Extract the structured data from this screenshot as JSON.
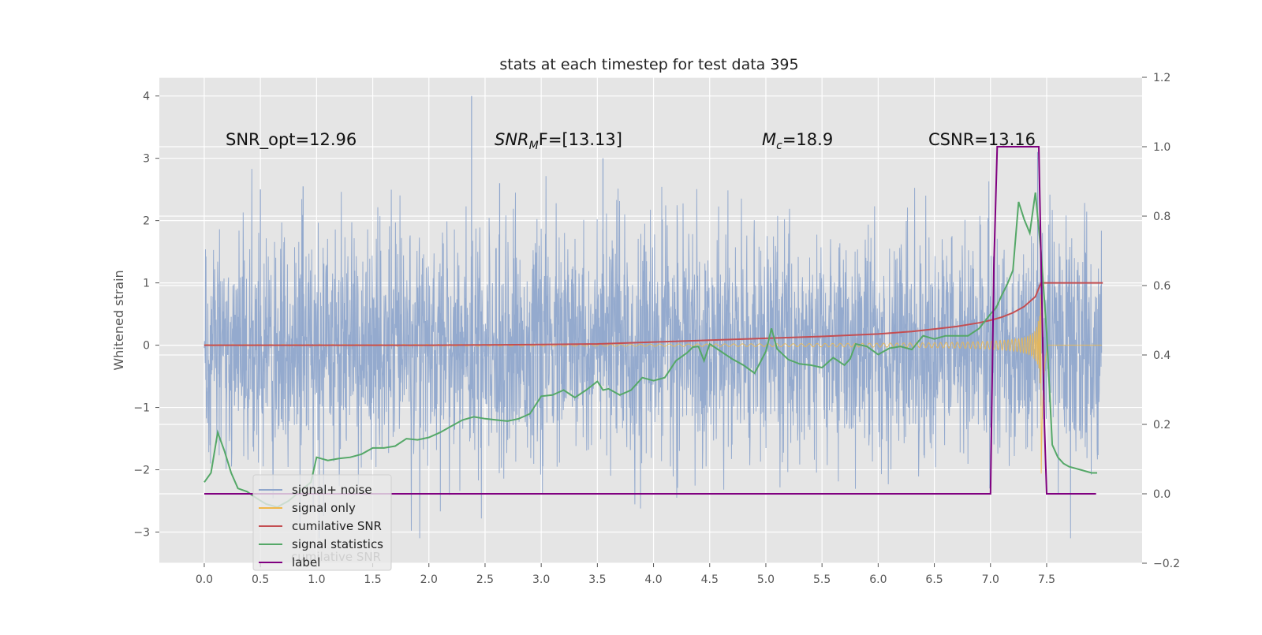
{
  "chart_data": {
    "type": "line",
    "title": "stats at each timestep for test data 395",
    "ylabel": "Whitened strain",
    "xlabel": "",
    "xlim": [
      -0.4,
      8.35
    ],
    "ylim": [
      -3.5,
      4.3
    ],
    "y2lim": [
      -0.2,
      1.2
    ],
    "x_ticks": [
      "0.0",
      "0.5",
      "1.0",
      "1.5",
      "2.0",
      "2.5",
      "3.0",
      "3.5",
      "4.0",
      "4.5",
      "5.0",
      "5.5",
      "6.0",
      "6.5",
      "7.0",
      "7.5"
    ],
    "y_ticks": [
      "−3",
      "−2",
      "−1",
      "0",
      "1",
      "2",
      "3",
      "4"
    ],
    "y2_ticks": [
      "−0.2",
      "0.0",
      "0.2",
      "0.4",
      "0.6",
      "0.8",
      "1.0",
      "1.2"
    ],
    "grid": true,
    "legend_position": "lower-left",
    "annotations": {
      "snr_opt": "SNR_opt=12.96",
      "snr_mf_base": "SNR",
      "snr_mf_sub": "M",
      "snr_mf_rest": "F=[13.13]",
      "mc_base": "M",
      "mc_sub": "c",
      "mc_rest": "=18.9",
      "csnr": "CSNR=13.16"
    },
    "legend_ghost_text": "cumilative SNR",
    "series": [
      {
        "name": "signal+ noise",
        "color": "#8fa6cc",
        "axis": "left",
        "kind": "noise",
        "x_range": [
          0.0,
          7.99
        ],
        "amplitude_std": 0.9,
        "y_min": -3.1,
        "y_max": 4.0
      },
      {
        "name": "signal only",
        "color": "#f0b84a",
        "axis": "left",
        "kind": "chirp",
        "x_range": [
          0.0,
          7.99
        ],
        "peak_amplitude": 1.0,
        "merger_time": 7.45
      },
      {
        "name": "cumilative SNR",
        "color": "#c44e52",
        "axis": "left",
        "x": [
          0.0,
          1.0,
          2.0,
          3.0,
          3.5,
          4.0,
          4.5,
          5.0,
          5.5,
          6.0,
          6.3,
          6.5,
          6.7,
          6.9,
          7.0,
          7.1,
          7.2,
          7.3,
          7.4,
          7.45,
          7.5,
          8.0
        ],
        "y": [
          0.0,
          0.0,
          0.0,
          0.01,
          0.02,
          0.05,
          0.08,
          0.11,
          0.14,
          0.18,
          0.22,
          0.26,
          0.3,
          0.36,
          0.4,
          0.45,
          0.52,
          0.62,
          0.78,
          1.0,
          1.0,
          1.0
        ]
      },
      {
        "name": "signal statistics",
        "color": "#55a868",
        "axis": "left",
        "x": [
          0.0,
          0.06,
          0.12,
          0.18,
          0.24,
          0.3,
          0.38,
          0.46,
          0.55,
          0.65,
          0.75,
          0.85,
          0.95,
          1.0,
          1.1,
          1.2,
          1.3,
          1.4,
          1.5,
          1.6,
          1.7,
          1.8,
          1.9,
          2.0,
          2.1,
          2.2,
          2.3,
          2.4,
          2.5,
          2.6,
          2.7,
          2.8,
          2.9,
          3.0,
          3.1,
          3.2,
          3.3,
          3.4,
          3.5,
          3.55,
          3.6,
          3.7,
          3.8,
          3.9,
          4.0,
          4.1,
          4.2,
          4.3,
          4.35,
          4.4,
          4.45,
          4.5,
          4.6,
          4.7,
          4.8,
          4.9,
          5.0,
          5.05,
          5.1,
          5.2,
          5.3,
          5.4,
          5.5,
          5.6,
          5.7,
          5.75,
          5.8,
          5.9,
          6.0,
          6.1,
          6.2,
          6.3,
          6.4,
          6.5,
          6.6,
          6.7,
          6.8,
          6.9,
          7.0,
          7.05,
          7.1,
          7.15,
          7.2,
          7.25,
          7.3,
          7.35,
          7.4,
          7.45,
          7.5,
          7.55,
          7.6,
          7.65,
          7.7,
          7.8,
          7.9,
          7.95
        ],
        "y": [
          -2.2,
          -2.05,
          -1.4,
          -1.7,
          -2.05,
          -2.3,
          -2.35,
          -2.45,
          -2.55,
          -2.6,
          -2.5,
          -2.35,
          -2.2,
          -1.8,
          -1.85,
          -1.82,
          -1.8,
          -1.75,
          -1.65,
          -1.65,
          -1.62,
          -1.5,
          -1.52,
          -1.48,
          -1.4,
          -1.3,
          -1.2,
          -1.15,
          -1.18,
          -1.2,
          -1.22,
          -1.18,
          -1.1,
          -0.82,
          -0.8,
          -0.72,
          -0.84,
          -0.72,
          -0.58,
          -0.72,
          -0.7,
          -0.8,
          -0.72,
          -0.52,
          -0.57,
          -0.52,
          -0.25,
          -0.12,
          -0.03,
          -0.02,
          -0.25,
          0.02,
          -0.1,
          -0.22,
          -0.32,
          -0.45,
          -0.1,
          0.27,
          -0.06,
          -0.23,
          -0.3,
          -0.32,
          -0.36,
          -0.2,
          -0.32,
          -0.22,
          0.02,
          -0.02,
          -0.15,
          -0.05,
          -0.02,
          -0.07,
          0.15,
          0.1,
          0.15,
          0.15,
          0.15,
          0.27,
          0.5,
          0.6,
          0.8,
          0.98,
          1.2,
          2.3,
          2.02,
          1.8,
          2.45,
          1.5,
          0.2,
          -1.6,
          -1.8,
          -1.9,
          -1.95,
          -2.0,
          -2.05,
          -2.05
        ]
      },
      {
        "name": "label",
        "color": "#800080",
        "axis": "right",
        "x": [
          0.0,
          7.0,
          7.03,
          7.06,
          7.43,
          7.48,
          7.5,
          7.94
        ],
        "y": [
          0.0,
          0.0,
          0.65,
          1.0,
          1.0,
          0.2,
          0.0,
          0.0
        ]
      }
    ]
  }
}
